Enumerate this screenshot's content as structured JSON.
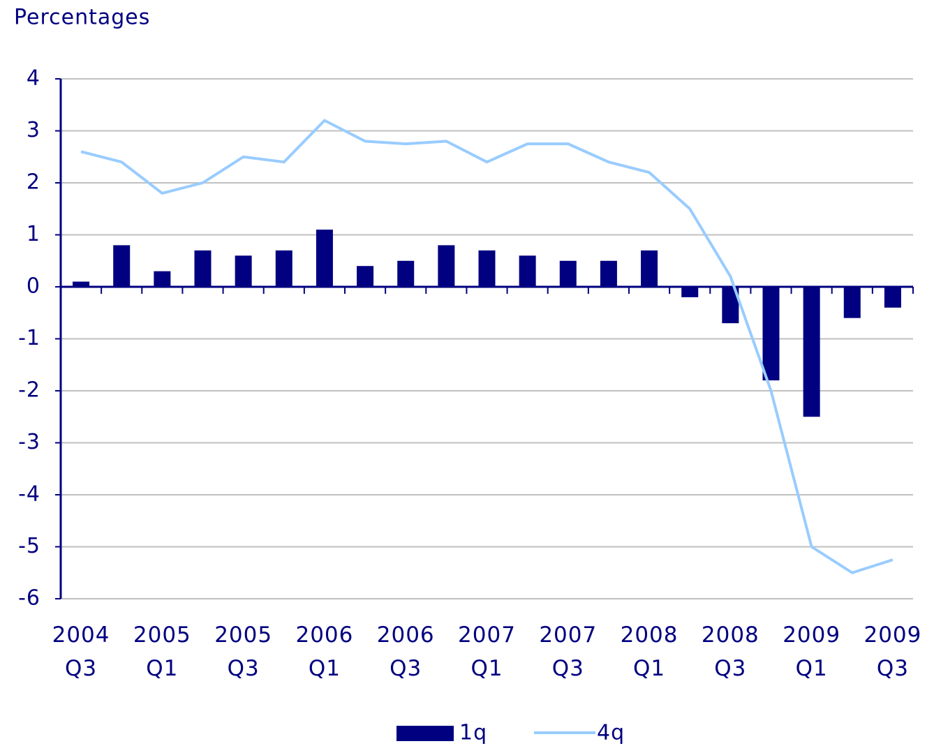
{
  "chart_data": {
    "type": "bar_line",
    "y_label": "Percentages",
    "categories": [
      "2004 Q3",
      null,
      "2005 Q1",
      null,
      "2005 Q3",
      null,
      "2006 Q1",
      null,
      "2006 Q3",
      null,
      "2007 Q1",
      null,
      "2007 Q3",
      null,
      "2008 Q1",
      null,
      "2008 Q3",
      null,
      "2009 Q1",
      null,
      "2009 Q3"
    ],
    "series": [
      {
        "name": "1q",
        "type": "bar",
        "color": "#000080",
        "values": [
          0.1,
          0.8,
          0.3,
          0.7,
          0.6,
          0.7,
          1.1,
          0.4,
          0.5,
          0.8,
          0.7,
          0.6,
          0.5,
          0.5,
          0.7,
          -0.2,
          -0.7,
          -1.8,
          -2.5,
          -0.6,
          -0.4
        ]
      },
      {
        "name": "4q",
        "type": "line",
        "color": "#99ccff",
        "values": [
          2.6,
          2.4,
          1.8,
          2.0,
          2.5,
          2.4,
          3.2,
          2.8,
          2.75,
          2.8,
          2.4,
          2.75,
          2.75,
          2.4,
          2.2,
          1.5,
          0.2,
          -2.0,
          -5.0,
          -5.5,
          -5.25
        ]
      }
    ],
    "ylim": [
      -6,
      4
    ],
    "yticks": [
      -6,
      -5,
      -4,
      -3,
      -2,
      -1,
      0,
      1,
      2,
      3,
      4
    ],
    "grid": true
  }
}
